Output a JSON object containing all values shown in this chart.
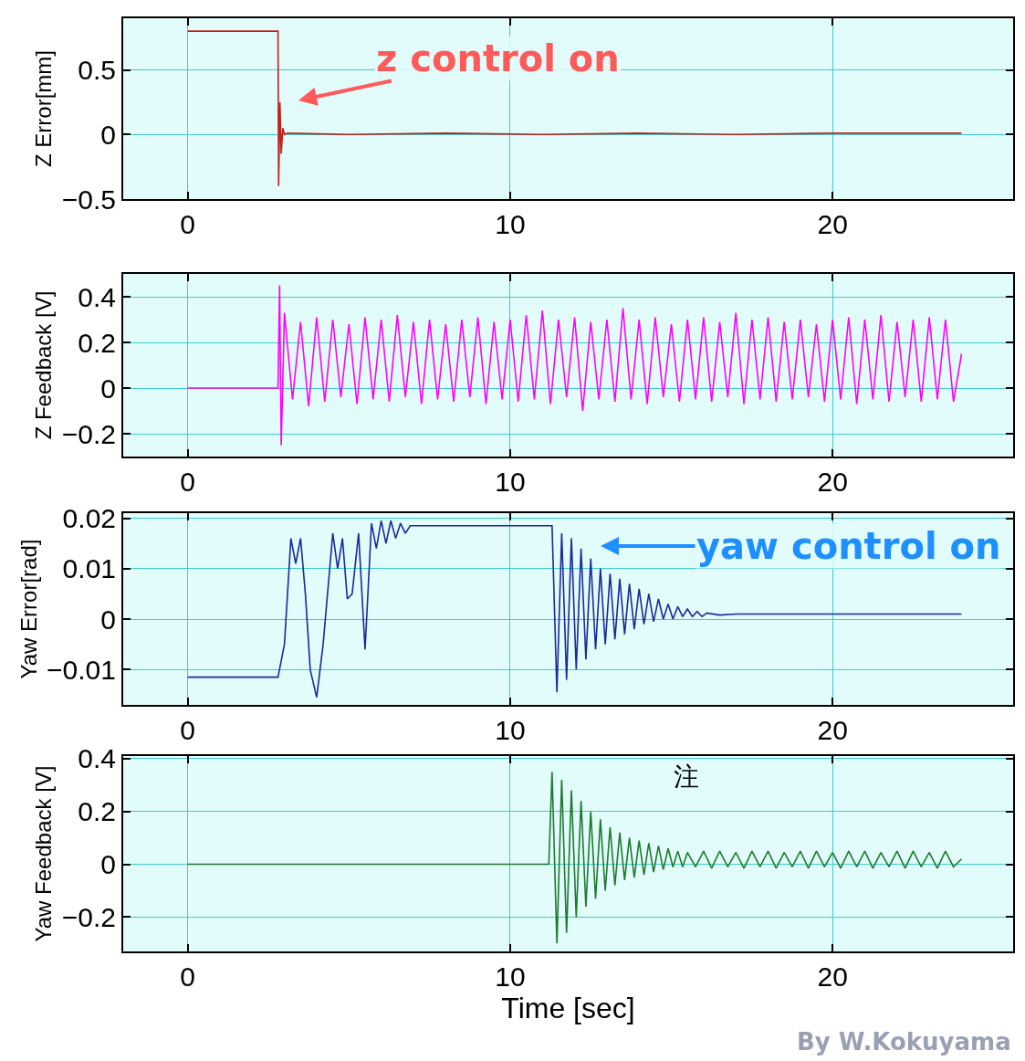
{
  "chart_data": [
    {
      "type": "line",
      "ylabel": "Z Error[mm]",
      "xlim": [
        -2,
        25.6
      ],
      "xticks": [
        0,
        10,
        20
      ],
      "ylim": [
        -0.5,
        0.9
      ],
      "yticks": [
        -0.5,
        0,
        0.5
      ],
      "grid": true,
      "series": [
        {
          "color": "#c0201a",
          "x": [
            0,
            2.8,
            2.82,
            2.86,
            2.9,
            2.95,
            3.0,
            3.1,
            5,
            8,
            11,
            14,
            17,
            20,
            24
          ],
          "values": [
            0.8,
            0.8,
            -0.4,
            0.25,
            -0.15,
            0.05,
            0,
            0.01,
            0,
            0.01,
            0,
            0.01,
            0,
            0.01,
            0.01
          ]
        }
      ],
      "annotations": [
        "z control on"
      ]
    },
    {
      "type": "line",
      "ylabel": "Z Feedback [V]",
      "xlim": [
        -2,
        25.6
      ],
      "xticks": [
        0,
        10,
        20
      ],
      "ylim": [
        -0.3,
        0.5
      ],
      "yticks": [
        -0.2,
        0,
        0.2,
        0.4
      ],
      "grid": true,
      "series": [
        {
          "color": "#ff00ff",
          "x": [
            0,
            2.8,
            2.85,
            2.9,
            3.0,
            3.25,
            3.5,
            3.75,
            4.0,
            4.25,
            4.5,
            4.75,
            5.0,
            5.25,
            5.5,
            5.75,
            6.0,
            6.25,
            6.5,
            6.75,
            7.0,
            7.25,
            7.5,
            7.75,
            8.0,
            8.25,
            8.5,
            8.75,
            9.0,
            9.25,
            9.5,
            9.75,
            10.0,
            10.25,
            10.5,
            10.75,
            11.0,
            11.25,
            11.5,
            11.75,
            12.0,
            12.25,
            12.5,
            12.75,
            13.0,
            13.25,
            13.5,
            13.75,
            14.0,
            14.25,
            14.5,
            14.75,
            15.0,
            15.25,
            15.5,
            15.75,
            16.0,
            16.25,
            16.5,
            16.75,
            17.0,
            17.25,
            17.5,
            17.75,
            18.0,
            18.25,
            18.5,
            18.75,
            19.0,
            19.25,
            19.5,
            19.75,
            20.0,
            20.25,
            20.5,
            20.75,
            21.0,
            21.25,
            21.5,
            21.75,
            22.0,
            22.25,
            22.5,
            22.75,
            23.0,
            23.25,
            23.5,
            23.75,
            24.0
          ],
          "values": [
            0,
            0,
            0.45,
            -0.25,
            0.33,
            -0.05,
            0.29,
            -0.08,
            0.31,
            -0.06,
            0.3,
            -0.04,
            0.28,
            -0.07,
            0.31,
            -0.05,
            0.3,
            -0.06,
            0.32,
            -0.04,
            0.29,
            -0.07,
            0.3,
            -0.05,
            0.28,
            -0.06,
            0.3,
            -0.04,
            0.31,
            -0.07,
            0.29,
            -0.05,
            0.3,
            -0.06,
            0.32,
            -0.05,
            0.34,
            -0.07,
            0.3,
            -0.04,
            0.31,
            -0.1,
            0.29,
            -0.05,
            0.3,
            -0.06,
            0.35,
            -0.05,
            0.3,
            -0.07,
            0.31,
            -0.04,
            0.28,
            -0.06,
            0.3,
            -0.05,
            0.31,
            -0.06,
            0.29,
            -0.04,
            0.33,
            -0.07,
            0.3,
            -0.05,
            0.31,
            -0.06,
            0.29,
            -0.05,
            0.3,
            -0.04,
            0.28,
            -0.06,
            0.3,
            -0.05,
            0.31,
            -0.07,
            0.3,
            -0.05,
            0.32,
            -0.06,
            0.29,
            -0.04,
            0.3,
            -0.06,
            0.31,
            -0.05,
            0.3,
            -0.06,
            0.15
          ]
        }
      ]
    },
    {
      "type": "line",
      "ylabel": "Yaw Error[rad]",
      "xlim": [
        -2,
        25.6
      ],
      "xticks": [
        0,
        10,
        20
      ],
      "ylim": [
        -0.017,
        0.021
      ],
      "yticks": [
        -0.01,
        0,
        0.01,
        0.02
      ],
      "grid": true,
      "series": [
        {
          "color": "#1a2a9a",
          "x": [
            0,
            2.8,
            3.0,
            3.2,
            3.35,
            3.5,
            3.65,
            3.8,
            4.0,
            4.2,
            4.5,
            4.65,
            4.8,
            4.95,
            5.1,
            5.3,
            5.5,
            5.7,
            5.85,
            6.0,
            6.15,
            6.3,
            6.45,
            6.6,
            6.75,
            6.9,
            7.2,
            8,
            9,
            10,
            11,
            11.2,
            11.3,
            11.45,
            11.6,
            11.75,
            11.9,
            12.05,
            12.2,
            12.35,
            12.5,
            12.65,
            12.8,
            12.95,
            13.1,
            13.25,
            13.4,
            13.55,
            13.7,
            13.85,
            14.0,
            14.15,
            14.3,
            14.45,
            14.6,
            14.75,
            14.9,
            15.05,
            15.2,
            15.35,
            15.5,
            15.65,
            15.8,
            15.95,
            16.1,
            16.5,
            17,
            18,
            20,
            22,
            24
          ],
          "values": [
            -0.0115,
            -0.0115,
            -0.005,
            0.016,
            0.011,
            0.016,
            0.005,
            -0.01,
            -0.0155,
            -0.005,
            0.017,
            0.01,
            0.016,
            0.004,
            0.005,
            0.017,
            -0.006,
            0.019,
            0.014,
            0.0195,
            0.015,
            0.0195,
            0.016,
            0.019,
            0.017,
            0.0185,
            0.0185,
            0.0185,
            0.0185,
            0.0185,
            0.0185,
            0.0185,
            0.0185,
            -0.0145,
            0.017,
            -0.012,
            0.016,
            -0.01,
            0.014,
            -0.008,
            0.012,
            -0.006,
            0.01,
            -0.005,
            0.009,
            -0.004,
            0.008,
            -0.003,
            0.007,
            -0.002,
            0.006,
            -0.001,
            0.005,
            -0.0005,
            0.004,
            0,
            0.003,
            0,
            0.0025,
            0.0005,
            0.002,
            0.0005,
            0.0015,
            0.0005,
            0.0012,
            0.0008,
            0.001,
            0.001,
            0.001,
            0.001,
            0.001
          ]
        }
      ],
      "annotations": [
        "yaw control on"
      ]
    },
    {
      "type": "line",
      "ylabel": "Yaw Feedback [V]",
      "xlabel": "Time [sec]",
      "xlim": [
        -2,
        25.6
      ],
      "xticks": [
        0,
        10,
        20
      ],
      "ylim": [
        -0.33,
        0.41
      ],
      "yticks": [
        -0.2,
        0,
        0.2,
        0.4
      ],
      "grid": true,
      "series": [
        {
          "color": "#1e7a2e",
          "x": [
            0,
            11.2,
            11.3,
            11.45,
            11.6,
            11.75,
            11.9,
            12.05,
            12.2,
            12.35,
            12.5,
            12.65,
            12.8,
            12.95,
            13.1,
            13.25,
            13.4,
            13.55,
            13.7,
            13.85,
            14.0,
            14.15,
            14.3,
            14.45,
            14.6,
            14.75,
            14.9,
            15.05,
            15.2,
            15.35,
            15.5,
            15.75,
            16.0,
            16.25,
            16.5,
            16.75,
            17.0,
            17.25,
            17.5,
            17.75,
            18.0,
            18.25,
            18.5,
            18.75,
            19.0,
            19.25,
            19.5,
            19.75,
            20.0,
            20.25,
            20.5,
            20.75,
            21.0,
            21.25,
            21.5,
            21.75,
            22.0,
            22.25,
            22.5,
            22.75,
            23.0,
            23.25,
            23.5,
            23.75,
            24.0
          ],
          "values": [
            0,
            0,
            0.35,
            -0.3,
            0.32,
            -0.26,
            0.28,
            -0.2,
            0.24,
            -0.16,
            0.2,
            -0.13,
            0.17,
            -0.1,
            0.14,
            -0.08,
            0.12,
            -0.06,
            0.1,
            -0.05,
            0.09,
            -0.04,
            0.08,
            -0.03,
            0.07,
            -0.02,
            0.06,
            -0.01,
            0.05,
            -0.01,
            0.045,
            -0.01,
            0.05,
            -0.015,
            0.05,
            -0.01,
            0.045,
            -0.015,
            0.05,
            -0.01,
            0.05,
            -0.015,
            0.045,
            -0.01,
            0.05,
            -0.015,
            0.05,
            -0.01,
            0.045,
            -0.015,
            0.05,
            -0.01,
            0.05,
            -0.015,
            0.045,
            -0.01,
            0.05,
            -0.015,
            0.05,
            -0.01,
            0.045,
            -0.015,
            0.05,
            -0.01,
            0.02
          ]
        }
      ],
      "annotations": [
        "注",
        "By W.Kokuyama"
      ]
    }
  ]
}
